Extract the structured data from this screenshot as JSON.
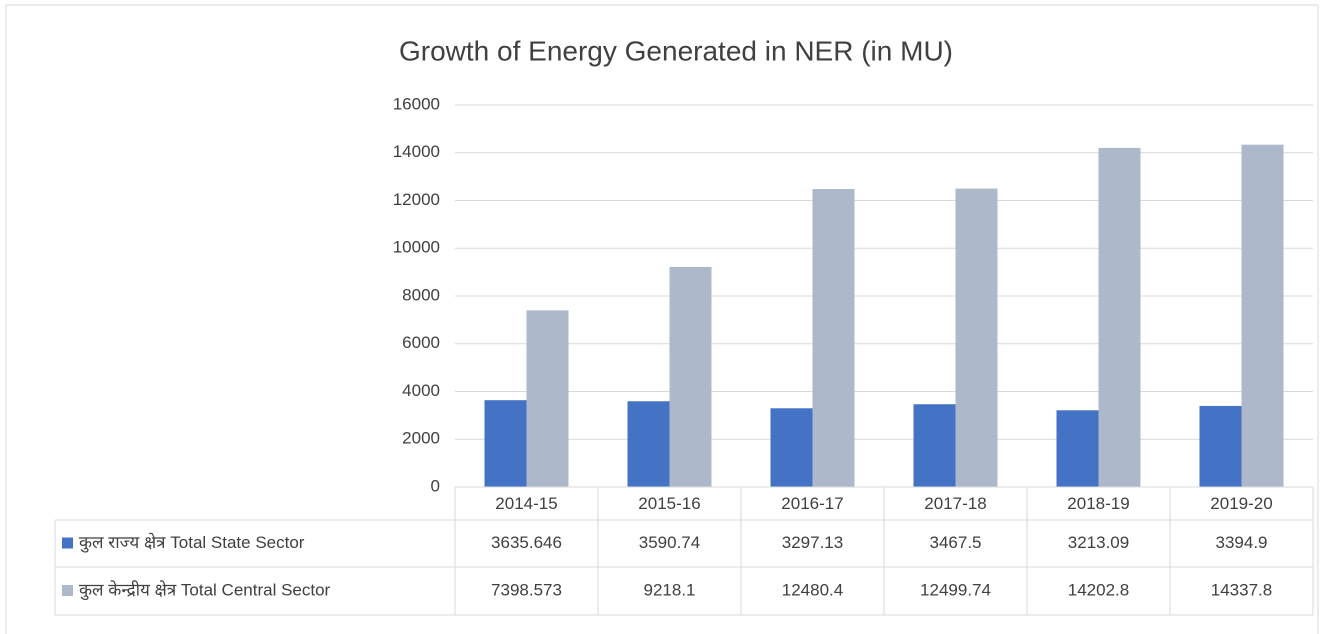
{
  "chart_data": {
    "type": "bar",
    "title": "Growth of Energy Generated in NER (in MU)",
    "categories": [
      "2014-15",
      "2015-16",
      "2016-17",
      "2017-18",
      "2018-19",
      "2019-20"
    ],
    "series": [
      {
        "name": "कुल राज्य क्षेत्र Total State Sector",
        "color": "#4472c4",
        "values": [
          3635.646,
          3590.74,
          3297.13,
          3467.5,
          3213.09,
          3394.9
        ]
      },
      {
        "name": "कुल केन्द्रीय क्षेत्र Total Central Sector",
        "color": "#adb9ca",
        "values": [
          7398.573,
          9218.1,
          12480.4,
          12499.74,
          14202.8,
          14337.8
        ]
      }
    ],
    "ylim": [
      0,
      16000
    ],
    "yticks": [
      0,
      2000,
      4000,
      6000,
      8000,
      10000,
      12000,
      14000,
      16000
    ],
    "grid": true
  }
}
